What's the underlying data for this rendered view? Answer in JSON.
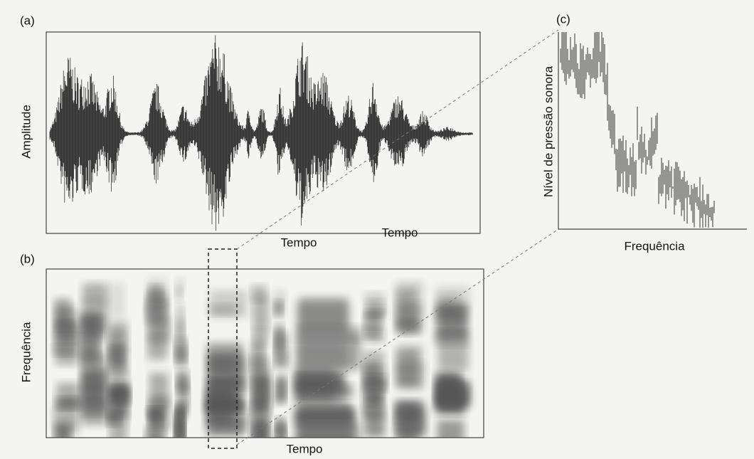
{
  "panels": [
    {
      "label": "(a)",
      "y_label": "Amplitude",
      "x_labels": [
        "Tempo",
        "Tempo"
      ]
    },
    {
      "label": "(b)",
      "y_label": "Frequência",
      "x_labels": [
        "Tempo"
      ]
    },
    {
      "label": "(c)",
      "y_label": "Nível de pressão sonora",
      "x_labels": [
        "Frequência"
      ]
    }
  ]
}
